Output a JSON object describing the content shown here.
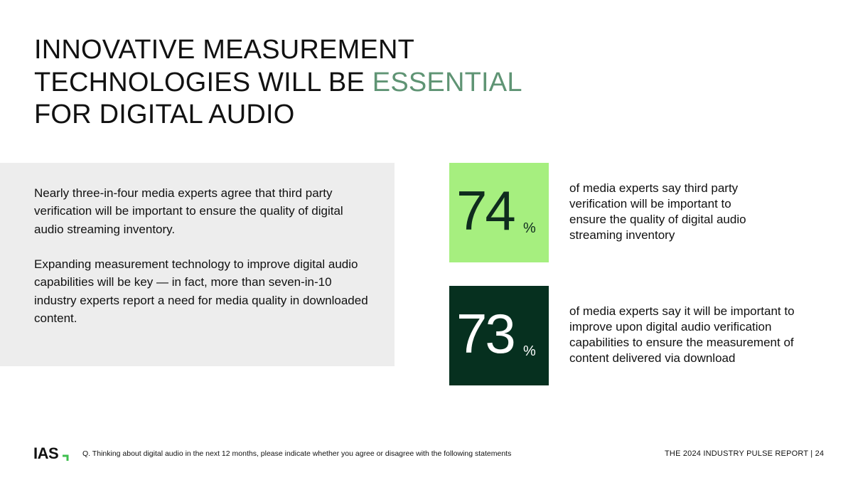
{
  "title": {
    "line1": "INNOVATIVE MEASUREMENT",
    "line2_pre": "TECHNOLOGIES WILL BE ",
    "line2_accent": "ESSENTIAL",
    "line3": "FOR DIGITAL AUDIO"
  },
  "body": {
    "paragraph1": "Nearly three-in-four media experts agree that third party verification will be important to ensure the quality of digital audio streaming inventory.",
    "paragraph2": "Expanding measurement technology to improve digital audio capabilities will be key — in fact, more than seven-in-10 industry experts report a need for media quality in downloaded content."
  },
  "stats": [
    {
      "value": "74",
      "unit": "%",
      "text": "of media experts say third party verification will be important to ensure the quality of digital audio streaming inventory"
    },
    {
      "value": "73",
      "unit": "%",
      "text": "of media experts say it will be important to improve upon digital audio verification capabilities to ensure the measurement of content delivered via download"
    }
  ],
  "footer": {
    "logo": "IAS",
    "question": "Q.  Thinking about digital audio in the next 12 months, please indicate whether you agree or disagree with the following statements",
    "report": "THE 2024 INDUSTRY PULSE REPORT  | 24"
  },
  "colors": {
    "accent": "#5f9474",
    "stat_green": "#a6ef7f",
    "stat_dark": "#06301f",
    "panel_gray": "#ededed",
    "logo_mark": "#3fbf4f"
  }
}
